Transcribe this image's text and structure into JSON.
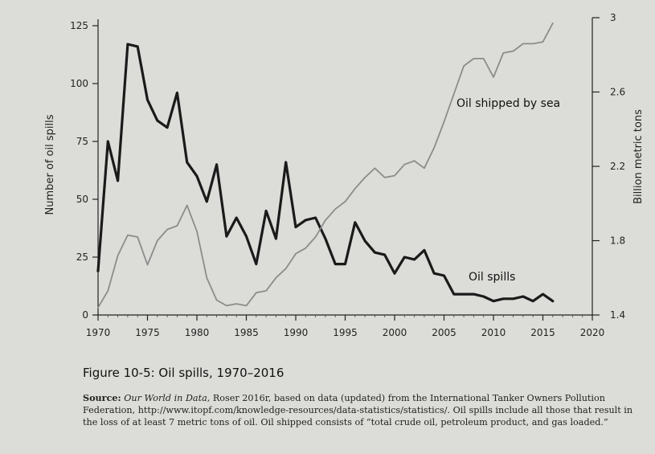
{
  "chart_data": {
    "type": "line",
    "title": "",
    "xlabel": "",
    "xticks": [
      "1970",
      "1975",
      "1980",
      "1985",
      "1990",
      "1995",
      "2000",
      "2005",
      "2010",
      "2015",
      "2020"
    ],
    "xlim": [
      1970,
      2020
    ],
    "y_left": {
      "label": "Number of oil spills",
      "ticks": [
        "0",
        "25",
        "50",
        "75",
        "100",
        "125"
      ],
      "ylim": [
        0,
        125
      ]
    },
    "y_right": {
      "label": "Billion metric tons",
      "ticks": [
        "1.4",
        "1.8",
        "2.2",
        "2.6",
        "3"
      ],
      "ylim": [
        1.4,
        3
      ]
    },
    "series": [
      {
        "name": "Oil spills",
        "axis": "left",
        "color": "#1a1a1a",
        "x": [
          1970,
          1971,
          1972,
          1973,
          1974,
          1975,
          1976,
          1977,
          1978,
          1979,
          1980,
          1981,
          1982,
          1983,
          1984,
          1985,
          1986,
          1987,
          1988,
          1989,
          1990,
          1991,
          1992,
          1993,
          1994,
          1995,
          1996,
          1997,
          1998,
          1999,
          2000,
          2001,
          2002,
          2003,
          2004,
          2005,
          2006,
          2007,
          2008,
          2009,
          2010,
          2011,
          2012,
          2013,
          2014,
          2015,
          2016
        ],
        "y": [
          19,
          75,
          58,
          117,
          116,
          93,
          84,
          81,
          96,
          66,
          60,
          49,
          65,
          34,
          42,
          34,
          22,
          45,
          33,
          66,
          38,
          41,
          42,
          33,
          22,
          22,
          40,
          32,
          27,
          26,
          18,
          25,
          24,
          28,
          18,
          17,
          9,
          9,
          9,
          8,
          6,
          7,
          7,
          8,
          6,
          9,
          6
        ]
      },
      {
        "name": "Oil shipped by sea",
        "axis": "right",
        "color": "#8c8c8c",
        "x": [
          1970,
          1971,
          1972,
          1973,
          1974,
          1975,
          1976,
          1977,
          1978,
          1979,
          1980,
          1981,
          1982,
          1983,
          1984,
          1985,
          1986,
          1987,
          1988,
          1989,
          1990,
          1991,
          1992,
          1993,
          1994,
          1995,
          1996,
          1997,
          1998,
          1999,
          2000,
          2001,
          2002,
          2003,
          2004,
          2005,
          2006,
          2007,
          2008,
          2009,
          2010,
          2011,
          2012,
          2013,
          2014,
          2015,
          2016
        ],
        "y": [
          1.44,
          1.53,
          1.72,
          1.83,
          1.82,
          1.67,
          1.8,
          1.86,
          1.88,
          1.99,
          1.85,
          1.6,
          1.48,
          1.45,
          1.46,
          1.45,
          1.52,
          1.53,
          1.6,
          1.65,
          1.73,
          1.76,
          1.82,
          1.91,
          1.97,
          2.01,
          2.08,
          2.14,
          2.19,
          2.14,
          2.15,
          2.21,
          2.23,
          2.19,
          2.3,
          2.44,
          2.59,
          2.74,
          2.78,
          2.78,
          2.68,
          2.81,
          2.82,
          2.86,
          2.86,
          2.87,
          2.97
        ]
      }
    ],
    "annotations": [
      {
        "text": "Oil shipped by sea",
        "series": "Oil shipped by sea"
      },
      {
        "text": "Oil spills",
        "series": "Oil spills"
      }
    ]
  },
  "caption": {
    "figure_title": "Figure 10-5: Oil spills, 1970–2016",
    "source_label": "Source:",
    "source_publication": "Our World in Data,",
    "source_text": " Roser 2016r, based on data (updated) from the International Tanker Owners Pollution Federation, http://www.itopf.com/knowledge-resources/data-statistics/statistics/. Oil spills include all those that result in the loss of at least 7 metric tons of oil. Oil shipped consists of “total crude oil, petroleum product, and gas loaded.”"
  }
}
